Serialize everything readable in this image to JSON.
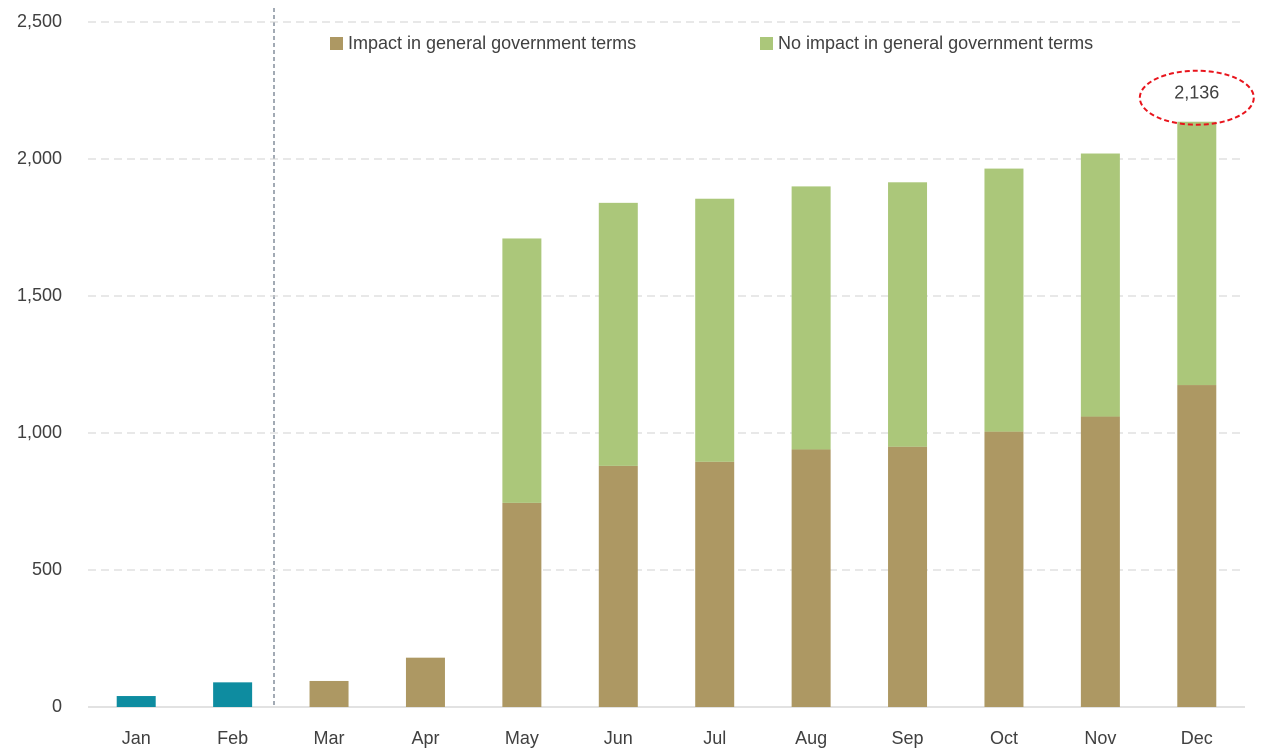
{
  "chart_data": {
    "type": "stacked_bar",
    "categories": [
      "Jan",
      "Feb",
      "Mar",
      "Apr",
      "May",
      "Jun",
      "Jul",
      "Aug",
      "Sep",
      "Oct",
      "Nov",
      "Dec"
    ],
    "series": [
      {
        "color": "#0e8ca0",
        "values": [
          40,
          90,
          null,
          null,
          null,
          null,
          null,
          null,
          null,
          null,
          null,
          null
        ]
      },
      {
        "name": "Impact in general government terms",
        "color": "#ad9863",
        "values": [
          null,
          null,
          95,
          180,
          745,
          880,
          895,
          940,
          950,
          1005,
          1060,
          1175
        ]
      },
      {
        "name": "No impact in general government terms",
        "color": "#abc77a",
        "values": [
          null,
          null,
          null,
          null,
          965,
          960,
          960,
          960,
          965,
          960,
          960,
          961
        ]
      }
    ],
    "annotation": {
      "value": 2136,
      "label": "2,136"
    },
    "ylim": [
      0,
      2500
    ],
    "yticks": [
      0,
      500,
      {
        "value": 1000,
        "label": "1,000"
      },
      {
        "value": 1500,
        "label": "1,500"
      },
      {
        "value": 2000,
        "label": "2,000"
      },
      {
        "value": 2500,
        "label": "2,500"
      }
    ],
    "grid": true
  }
}
